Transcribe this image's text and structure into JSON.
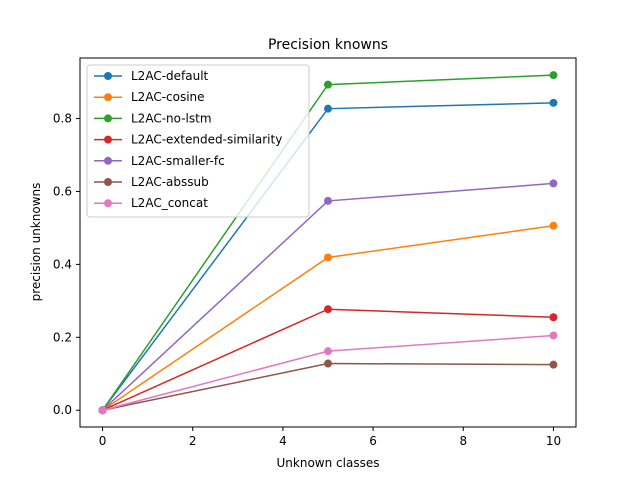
{
  "chart_data": {
    "type": "line",
    "title": "Precision knowns",
    "xlabel": "Unknown classes",
    "ylabel": "precision unknowns",
    "x": [
      0,
      5,
      10
    ],
    "xlim": [
      -0.5,
      10.5
    ],
    "ylim": [
      -0.046,
      0.966
    ],
    "xticks": [
      0,
      2,
      4,
      6,
      8,
      10
    ],
    "xtick_labels": [
      "0",
      "2",
      "4",
      "6",
      "8",
      "10"
    ],
    "yticks": [
      0.0,
      0.2,
      0.4,
      0.6,
      0.8
    ],
    "ytick_labels": [
      "0.0",
      "0.2",
      "0.4",
      "0.6",
      "0.8"
    ],
    "grid": false,
    "legend_position": "upper-left",
    "series": [
      {
        "name": "L2AC-default",
        "color": "#1f77b4",
        "values": [
          0.0,
          0.827,
          0.843
        ]
      },
      {
        "name": "L2AC-cosine",
        "color": "#ff7f0e",
        "values": [
          0.0,
          0.419,
          0.506
        ]
      },
      {
        "name": "L2AC-no-lstm",
        "color": "#2ca02c",
        "values": [
          0.0,
          0.893,
          0.919
        ]
      },
      {
        "name": "L2AC-extended-similarity",
        "color": "#d62728",
        "values": [
          0.0,
          0.277,
          0.255
        ]
      },
      {
        "name": "L2AC-smaller-fc",
        "color": "#9467bd",
        "values": [
          0.0,
          0.574,
          0.622
        ]
      },
      {
        "name": "L2AC-abssub",
        "color": "#8c564b",
        "values": [
          0.0,
          0.128,
          0.125
        ]
      },
      {
        "name": "L2AC_concat",
        "color": "#e377c2",
        "values": [
          0.0,
          0.162,
          0.205
        ]
      }
    ]
  }
}
